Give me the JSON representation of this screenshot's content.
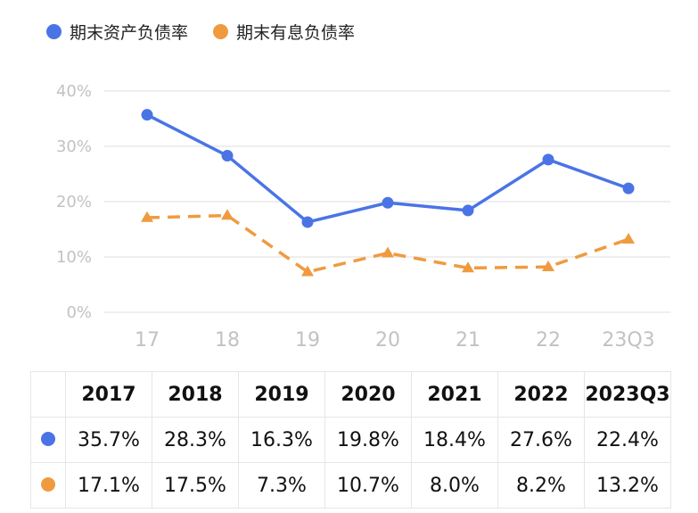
{
  "colors": {
    "series1": "#4a74e6",
    "series2": "#f09a3f",
    "grid": "#e9e9e9",
    "tick": "#c2c2c2"
  },
  "legend": {
    "items": [
      {
        "label": "期末资产负债率",
        "color": "#4a74e6"
      },
      {
        "label": "期末有息负债率",
        "color": "#f09a3f"
      }
    ]
  },
  "chart_data": {
    "type": "line",
    "categories": [
      "17",
      "18",
      "19",
      "20",
      "21",
      "22",
      "23Q3"
    ],
    "yticks": [
      "0%",
      "10%",
      "20%",
      "30%",
      "40%"
    ],
    "ylim": [
      0,
      40
    ],
    "grid": true,
    "legend_position": "top-left",
    "series": [
      {
        "name": "期末资产负债率",
        "values": [
          35.7,
          28.3,
          16.3,
          19.8,
          18.4,
          27.6,
          22.4
        ],
        "style": "solid",
        "marker": "circle",
        "color": "#4a74e6"
      },
      {
        "name": "期末有息负债率",
        "values": [
          17.1,
          17.5,
          7.3,
          10.7,
          8.0,
          8.2,
          13.2
        ],
        "style": "dashed",
        "marker": "triangle",
        "color": "#f09a3f"
      }
    ]
  },
  "table": {
    "headers": [
      "2017",
      "2018",
      "2019",
      "2020",
      "2021",
      "2022",
      "2023Q3"
    ],
    "rows": [
      [
        "35.7%",
        "28.3%",
        "16.3%",
        "19.8%",
        "18.4%",
        "27.6%",
        "22.4%"
      ],
      [
        "17.1%",
        "17.5%",
        "7.3%",
        "10.7%",
        "8.0%",
        "8.2%",
        "13.2%"
      ]
    ]
  }
}
